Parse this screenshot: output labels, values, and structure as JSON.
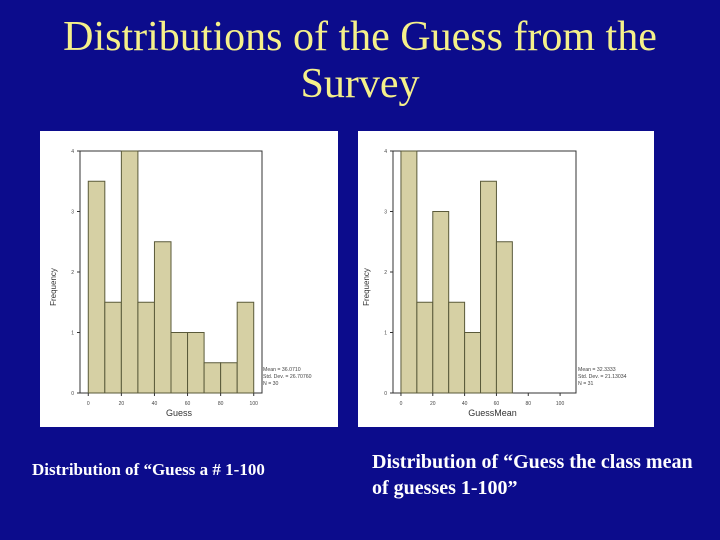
{
  "slide": {
    "title_line1": "Distributions of the Guess from the",
    "title_line2": "Survey",
    "caption_left": "Distribution of “Guess a # 1-100",
    "caption_right": "Distribution of “Guess the class mean of guesses 1-100”"
  },
  "colors": {
    "background": "#0c0c8c",
    "title": "#f5f08a",
    "bar_fill": "#d6d0a4",
    "bar_stroke": "#5a5a3a"
  },
  "chart_data": [
    {
      "type": "bar",
      "xlabel": "Guess",
      "ylabel": "Frequency",
      "bin_edges": [
        0,
        10,
        20,
        30,
        40,
        50,
        60,
        70,
        80,
        90,
        100
      ],
      "values": [
        3.5,
        1.5,
        4,
        1.5,
        2.5,
        1,
        1,
        0.5,
        0.5,
        1.5
      ],
      "xticks": [
        "0",
        "20",
        "40",
        "60",
        "80",
        "100"
      ],
      "xtick_values": [
        0,
        20,
        40,
        60,
        80,
        100
      ],
      "yticks": [
        "0",
        "1",
        "2",
        "3",
        "4"
      ],
      "ytick_values": [
        0,
        1,
        2,
        3,
        4
      ],
      "xlim": [
        -5,
        105
      ],
      "ylim": [
        0,
        4
      ],
      "stats": [
        "Mean = 36.0710",
        "Std. Dev. = 26.70760",
        "N = 30"
      ]
    },
    {
      "type": "bar",
      "xlabel": "GuessMean",
      "ylabel": "Frequency",
      "bin_edges": [
        0,
        10,
        20,
        30,
        40,
        50,
        60,
        70
      ],
      "values": [
        4,
        1.5,
        3,
        1.5,
        1,
        3.5,
        2.5
      ],
      "xticks": [
        "0",
        "20",
        "40",
        "60",
        "80",
        "100"
      ],
      "xtick_values": [
        0,
        20,
        40,
        60,
        80,
        100
      ],
      "yticks": [
        "0",
        "1",
        "2",
        "3",
        "4"
      ],
      "ytick_values": [
        0,
        1,
        2,
        3,
        4
      ],
      "xlim": [
        -5,
        110
      ],
      "ylim": [
        0,
        4
      ],
      "stats": [
        "Mean = 32.3333",
        "Std. Dev. = 21.13034",
        "N = 31"
      ]
    }
  ]
}
